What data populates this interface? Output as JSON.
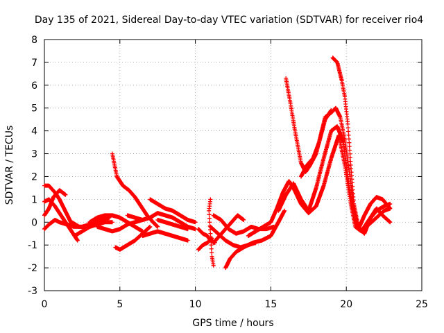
{
  "chart_data": {
    "type": "scatter",
    "title": "Day 135 of 2021, Sidereal Day-to-day VTEC variation (SDTVAR) for receiver rio4",
    "xlabel": "GPS time / hours",
    "ylabel": "SDTVAR / TECUs",
    "xlim": [
      0,
      25
    ],
    "ylim": [
      -3,
      8
    ],
    "xticks": [
      0,
      5,
      10,
      15,
      20,
      25
    ],
    "yticks": [
      -3,
      -2,
      -1,
      0,
      1,
      2,
      3,
      4,
      5,
      6,
      7,
      8
    ],
    "grid": true,
    "marker": "+",
    "color": "#ff0000",
    "series": [
      {
        "name": "s1",
        "x": [
          0.0,
          0.3,
          0.7,
          1.0,
          1.3,
          1.6,
          1.9
        ],
        "y": [
          1.6,
          1.6,
          1.3,
          1.0,
          0.6,
          0.2,
          -0.2
        ]
      },
      {
        "name": "s2",
        "x": [
          0.0,
          0.3,
          0.7,
          1.1,
          1.5,
          1.9,
          2.2
        ],
        "y": [
          0.9,
          1.0,
          0.7,
          0.3,
          -0.1,
          -0.5,
          -0.8
        ]
      },
      {
        "name": "s3",
        "x": [
          0.0,
          0.3,
          0.7,
          1.0,
          1.5,
          2.0,
          2.5,
          3.0
        ],
        "y": [
          -0.3,
          -0.1,
          0.1,
          0.0,
          -0.1,
          -0.2,
          -0.2,
          -0.1
        ]
      },
      {
        "name": "s4",
        "x": [
          0.0,
          0.3,
          0.6,
          1.0,
          1.4
        ],
        "y": [
          0.3,
          0.6,
          1.1,
          1.4,
          1.2
        ]
      },
      {
        "name": "s5",
        "x": [
          1.8,
          2.3,
          2.8,
          3.3,
          3.8,
          4.3
        ],
        "y": [
          0.0,
          -0.2,
          -0.2,
          0.0,
          0.1,
          0.2
        ]
      },
      {
        "name": "s6",
        "x": [
          2.0,
          2.5,
          3.0,
          3.5,
          4.0,
          4.5
        ],
        "y": [
          -0.6,
          -0.4,
          -0.2,
          -0.1,
          0.0,
          0.0
        ]
      },
      {
        "name": "s7",
        "x": [
          3.0,
          3.5,
          4.0,
          4.5,
          5.0,
          5.5,
          6.0,
          6.5
        ],
        "y": [
          0.0,
          0.2,
          0.3,
          0.3,
          0.2,
          0.0,
          -0.2,
          -0.4
        ]
      },
      {
        "name": "s8",
        "x": [
          3.5,
          4.0,
          4.5,
          5.0,
          5.5,
          6.0,
          6.5,
          7.0
        ],
        "y": [
          -0.2,
          -0.3,
          -0.4,
          -0.3,
          -0.1,
          0.0,
          0.1,
          0.2
        ]
      },
      {
        "name": "s9",
        "x": [
          4.5,
          4.8,
          5.2,
          5.6,
          6.0,
          6.4,
          6.8,
          7.2,
          7.5
        ],
        "y": [
          3.0,
          2.0,
          1.6,
          1.4,
          1.1,
          0.7,
          0.3,
          0.0,
          -0.2
        ]
      },
      {
        "name": "s10",
        "x": [
          4.7,
          5.0,
          5.5,
          6.0,
          6.5,
          7.0
        ],
        "y": [
          -1.1,
          -1.2,
          -1.0,
          -0.8,
          -0.5,
          -0.2
        ]
      },
      {
        "name": "s11",
        "x": [
          5.5,
          6.0,
          6.5,
          7.0,
          7.5,
          8.0,
          8.5,
          9.0,
          9.5,
          10.0
        ],
        "y": [
          0.3,
          0.2,
          0.1,
          0.2,
          0.4,
          0.3,
          0.2,
          0.0,
          -0.2,
          -0.3
        ]
      },
      {
        "name": "s12",
        "x": [
          7.0,
          7.5,
          8.0,
          8.5,
          9.0,
          9.5,
          10.0
        ],
        "y": [
          1.0,
          0.8,
          0.6,
          0.5,
          0.3,
          0.1,
          0.0
        ]
      },
      {
        "name": "s13",
        "x": [
          6.5,
          7.0,
          7.5,
          8.0,
          8.5,
          9.0,
          9.5
        ],
        "y": [
          -0.6,
          -0.5,
          -0.4,
          -0.5,
          -0.6,
          -0.7,
          -0.8
        ]
      },
      {
        "name": "s14",
        "x": [
          7.5,
          8.0,
          8.5,
          9.0,
          9.5
        ],
        "y": [
          0.1,
          0.0,
          -0.1,
          -0.2,
          -0.3
        ]
      },
      {
        "name": "s15",
        "x": [
          10.2,
          10.5,
          10.8,
          11.0,
          11.3
        ],
        "y": [
          -0.3,
          -0.5,
          -0.6,
          -0.8,
          -0.9
        ]
      },
      {
        "name": "s16",
        "x": [
          10.2,
          10.5,
          10.8,
          11.1
        ],
        "y": [
          -1.2,
          -1.0,
          -0.9,
          -0.7
        ]
      },
      {
        "name": "s17",
        "x": [
          11.0,
          10.9,
          11.0,
          11.1,
          11.2
        ],
        "y": [
          1.0,
          0.5,
          -0.5,
          -1.5,
          -1.9
        ]
      },
      {
        "name": "s18",
        "x": [
          11.2,
          11.7,
          12.2,
          12.7,
          13.2,
          13.7,
          14.2,
          14.7,
          15.2
        ],
        "y": [
          0.3,
          0.1,
          -0.3,
          -0.5,
          -0.4,
          -0.2,
          -0.3,
          -0.3,
          -0.2
        ]
      },
      {
        "name": "s19",
        "x": [
          11.0,
          11.5,
          12.0,
          12.5,
          13.0,
          13.5,
          14.0
        ],
        "y": [
          -0.2,
          -0.5,
          -0.8,
          -1.0,
          -1.1,
          -1.0,
          -0.9
        ]
      },
      {
        "name": "s20",
        "x": [
          11.2,
          11.6,
          12.0,
          12.4,
          12.8,
          13.2
        ],
        "y": [
          -0.9,
          -0.6,
          -0.3,
          0.0,
          0.3,
          0.1
        ]
      },
      {
        "name": "s21",
        "x": [
          12.0,
          12.3,
          12.7,
          13.2,
          13.8,
          14.4,
          15.0,
          15.5,
          15.9
        ],
        "y": [
          -2.0,
          -1.6,
          -1.3,
          -1.1,
          -0.9,
          -0.8,
          -0.6,
          0.0,
          0.5
        ]
      },
      {
        "name": "s22",
        "x": [
          13.5,
          14.0,
          14.5,
          15.0,
          15.4,
          15.8,
          16.2,
          16.5,
          17.0,
          17.5,
          18.0,
          18.5,
          19.0,
          19.5,
          19.9,
          20.3,
          20.6,
          21.0,
          21.5,
          22.0,
          22.5,
          22.9
        ],
        "y": [
          -0.6,
          -0.4,
          -0.2,
          0.0,
          0.6,
          1.3,
          1.8,
          1.5,
          0.8,
          0.4,
          0.7,
          1.6,
          2.8,
          3.8,
          2.5,
          0.8,
          -0.2,
          -0.4,
          -0.1,
          0.2,
          0.5,
          0.6
        ]
      },
      {
        "name": "s23",
        "x": [
          15.5,
          16.0,
          16.5,
          17.0,
          17.5,
          18.0,
          18.5,
          19.0,
          19.4,
          19.8,
          20.2,
          20.6,
          21.0,
          21.5,
          22.0,
          22.5,
          22.9
        ],
        "y": [
          0.5,
          1.2,
          1.7,
          1.0,
          0.5,
          1.5,
          2.8,
          4.0,
          4.2,
          3.5,
          1.5,
          0.0,
          -0.4,
          0.1,
          0.5,
          0.7,
          0.8
        ]
      },
      {
        "name": "s24",
        "x": [
          16.0,
          16.3,
          16.6,
          17.0,
          17.3,
          17.6,
          18.0,
          18.3,
          18.6,
          19.0,
          19.3,
          19.6,
          19.9,
          20.2,
          20.5,
          20.8,
          21.2,
          21.6,
          22.0,
          22.4,
          22.9
        ],
        "y": [
          6.3,
          5.2,
          4.0,
          2.6,
          2.2,
          2.5,
          3.0,
          3.8,
          4.6,
          4.8,
          5.0,
          4.6,
          3.6,
          2.2,
          0.6,
          -0.3,
          0.3,
          0.8,
          1.1,
          1.0,
          0.6
        ]
      },
      {
        "name": "s25",
        "x": [
          17.0,
          17.4,
          17.8,
          18.2,
          18.6,
          19.0
        ],
        "y": [
          2.0,
          2.5,
          2.8,
          3.5,
          4.5,
          4.9
        ]
      },
      {
        "name": "s26",
        "x": [
          19.1,
          19.4,
          19.7,
          19.9,
          20.1,
          20.3,
          20.5,
          20.8,
          21.2,
          21.6,
          22.0,
          22.4,
          22.9
        ],
        "y": [
          7.2,
          7.0,
          6.2,
          5.5,
          4.3,
          2.5,
          0.8,
          -0.2,
          -0.5,
          0.2,
          0.6,
          0.3,
          0.0
        ]
      }
    ]
  }
}
